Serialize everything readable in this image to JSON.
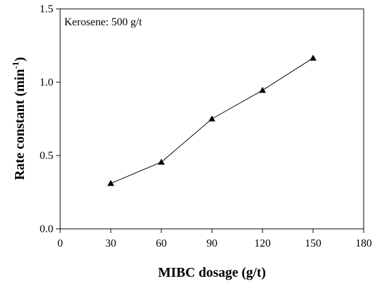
{
  "chart_data": {
    "type": "line",
    "x": [
      30,
      60,
      90,
      120,
      150
    ],
    "series": [
      {
        "values": [
          0.31,
          0.455,
          0.75,
          0.945,
          1.165
        ],
        "marker": "triangle",
        "color": "#000000"
      }
    ],
    "xlabel": "MIBC dosage (g/t)",
    "ylabel_main": "Rate constant (min",
    "ylabel_sup": "-1",
    "ylabel_close": ")",
    "xlim": [
      0,
      180
    ],
    "ylim": [
      0,
      1.5
    ],
    "xticks": [
      0,
      30,
      60,
      90,
      120,
      150,
      180
    ],
    "yticks": [
      0,
      0.5,
      1,
      1.5
    ],
    "xtick_labels": [
      "0",
      "30",
      "60",
      "90",
      "120",
      "150",
      "180"
    ],
    "ytick_labels": [
      "0.0",
      "0.5",
      "1.0",
      "1.5"
    ],
    "annotation": "Kerosene: 500 g/t",
    "annotation_position": "top-left",
    "grid": false
  }
}
